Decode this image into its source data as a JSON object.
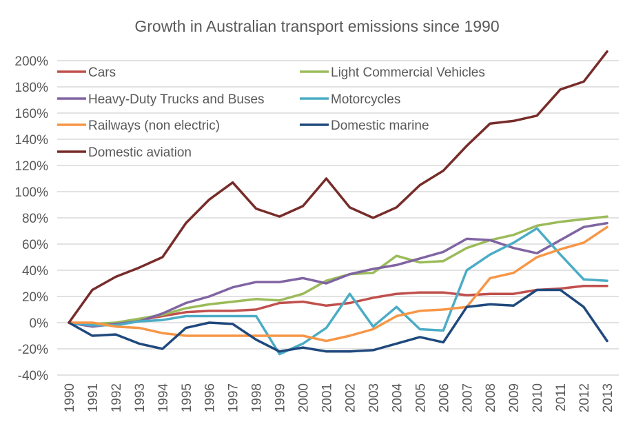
{
  "chart_data": {
    "type": "line",
    "title": "Growth in Australian transport emissions since 1990",
    "xlabel": "",
    "ylabel": "",
    "x": [
      "1990",
      "1991",
      "1992",
      "1993",
      "1994",
      "1995",
      "1996",
      "1997",
      "1998",
      "1999",
      "2000",
      "2001",
      "2002",
      "2003",
      "2004",
      "2005",
      "2006",
      "2007",
      "2008",
      "2009",
      "2010",
      "2011",
      "2012",
      "2013"
    ],
    "ylim": [
      -40,
      200
    ],
    "yticks": [
      -40,
      -20,
      0,
      20,
      40,
      60,
      80,
      100,
      120,
      140,
      160,
      180,
      200
    ],
    "ytick_labels": [
      "-40%",
      "-20%",
      "0%",
      "20%",
      "40%",
      "60%",
      "80%",
      "100%",
      "120%",
      "140%",
      "160%",
      "180%",
      "200%"
    ],
    "grid": true,
    "legend_position": "top-left (inside plot, two columns)",
    "series": [
      {
        "name": "Cars",
        "color": "#c0504d",
        "values": [
          0,
          -1,
          -1,
          2,
          5,
          8,
          9,
          9,
          10,
          15,
          16,
          13,
          15,
          19,
          22,
          23,
          23,
          21,
          22,
          22,
          25,
          26,
          28,
          28
        ]
      },
      {
        "name": "Light Commercial Vehicles",
        "color": "#9bbb59",
        "values": [
          0,
          -1,
          0,
          3,
          6,
          11,
          14,
          16,
          18,
          17,
          22,
          32,
          37,
          38,
          51,
          46,
          47,
          57,
          63,
          67,
          74,
          77,
          79,
          81
        ]
      },
      {
        "name": "Heavy-Duty Trucks and Buses",
        "color": "#8064a2",
        "values": [
          0,
          -3,
          -1,
          1,
          7,
          15,
          20,
          27,
          31,
          31,
          34,
          30,
          37,
          41,
          44,
          49,
          54,
          64,
          63,
          57,
          53,
          63,
          73,
          76
        ]
      },
      {
        "name": "Motorcycles",
        "color": "#4bacc6",
        "values": [
          0,
          -2,
          -2,
          1,
          2,
          5,
          5,
          5,
          5,
          -24,
          -16,
          -4,
          22,
          -3,
          12,
          -5,
          -6,
          40,
          52,
          61,
          72,
          52,
          33,
          32
        ]
      },
      {
        "name": "Railways (non electric)",
        "color": "#f79646",
        "values": [
          0,
          0,
          -3,
          -4,
          -8,
          -10,
          -10,
          -10,
          -10,
          -10,
          -10,
          -14,
          -10,
          -5,
          5,
          9,
          10,
          12,
          34,
          38,
          50,
          56,
          61,
          73
        ]
      },
      {
        "name": "Domestic marine",
        "color": "#1f497d",
        "values": [
          0,
          -10,
          -9,
          -16,
          -20,
          -4,
          0,
          -1,
          -13,
          -22,
          -19,
          -22,
          -22,
          -21,
          -16,
          -11,
          -15,
          12,
          14,
          13,
          25,
          25,
          12,
          -14
        ]
      },
      {
        "name": "Domestic aviation",
        "color": "#772c2a",
        "values": [
          0,
          25,
          35,
          42,
          50,
          76,
          94,
          107,
          87,
          81,
          89,
          110,
          88,
          80,
          88,
          105,
          116,
          135,
          152,
          154,
          158,
          178,
          184,
          207
        ]
      }
    ]
  }
}
